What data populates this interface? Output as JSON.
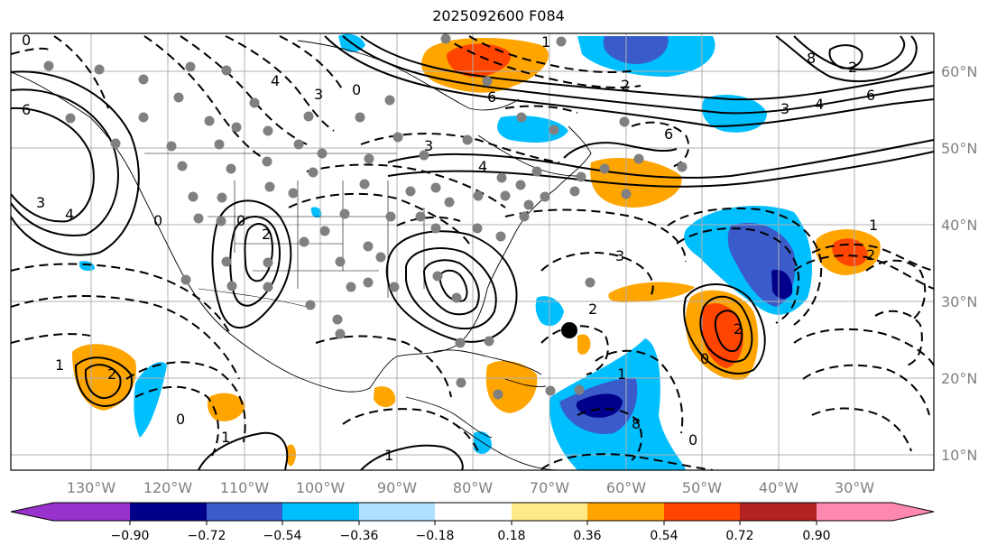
{
  "title": "2025092600 F084",
  "lon_labels": [
    "130°W",
    "120°W",
    "110°W",
    "100°W",
    "90°W",
    "80°W",
    "70°W",
    "60°W",
    "50°W",
    "40°W",
    "30°W"
  ],
  "lat_labels": [
    "60°N",
    "50°N",
    "40°N",
    "30°N",
    "20°N",
    "10°N"
  ],
  "colorbar": {
    "tick_labels": [
      "−0.90",
      "−0.72",
      "−0.54",
      "−0.36",
      "−0.18",
      "0.18",
      "0.36",
      "0.54",
      "0.72",
      "0.90"
    ],
    "colors": [
      "#9932cc",
      "#00008b",
      "#3a5bc9",
      "#00bfff",
      "#b0e0ff",
      "#ffffff",
      "#ffea8a",
      "#ffa500",
      "#ff4500",
      "#b22222",
      "#ff88b0"
    ]
  },
  "contour_labels": [
    "0",
    "6",
    "4",
    "3",
    "0",
    "8",
    "2",
    "1",
    "6",
    "3",
    "4",
    "6",
    "2",
    "4",
    "6",
    "3",
    "4",
    "0",
    "3",
    "0",
    "2",
    "2",
    "3",
    "1",
    "2",
    "1",
    "2",
    "0",
    "1",
    "1",
    "1",
    "0",
    "2",
    "0",
    "8"
  ]
}
